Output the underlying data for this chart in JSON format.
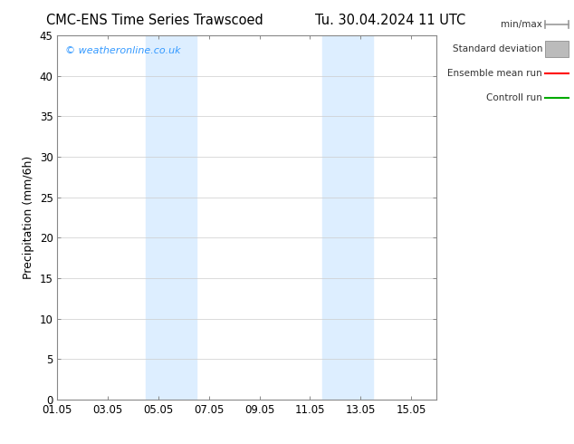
{
  "title_left": "CMC-ENS Time Series Trawscoed",
  "title_right": "Tu. 30.04.2024 11 UTC",
  "ylabel": "Precipitation (mm/6h)",
  "ylim": [
    0,
    45
  ],
  "yticks": [
    0,
    5,
    10,
    15,
    20,
    25,
    30,
    35,
    40,
    45
  ],
  "xtick_labels": [
    "01.05",
    "03.05",
    "05.05",
    "07.05",
    "09.05",
    "11.05",
    "13.05",
    "15.05"
  ],
  "xtick_positions": [
    0,
    2,
    4,
    6,
    8,
    10,
    12,
    14
  ],
  "xlim": [
    0,
    15
  ],
  "shaded_bands": [
    {
      "xstart": 3.5,
      "xend": 5.5,
      "color": "#ddeeff"
    },
    {
      "xstart": 10.5,
      "xend": 12.5,
      "color": "#ddeeff"
    }
  ],
  "bg_color": "#ffffff",
  "plot_bg_color": "#ffffff",
  "grid_color": "#cccccc",
  "watermark_text": "© weatheronline.co.uk",
  "watermark_color": "#3399ff",
  "legend_items": [
    {
      "label": "min/max",
      "color": "#999999",
      "style": "minmax"
    },
    {
      "label": "Standard deviation",
      "color": "#bbbbbb",
      "style": "band"
    },
    {
      "label": "Ensemble mean run",
      "color": "#ff0000",
      "style": "line"
    },
    {
      "label": "Controll run",
      "color": "#00aa00",
      "style": "line"
    }
  ],
  "title_fontsize": 10.5,
  "axis_fontsize": 9,
  "tick_fontsize": 8.5,
  "legend_fontsize": 7.5
}
